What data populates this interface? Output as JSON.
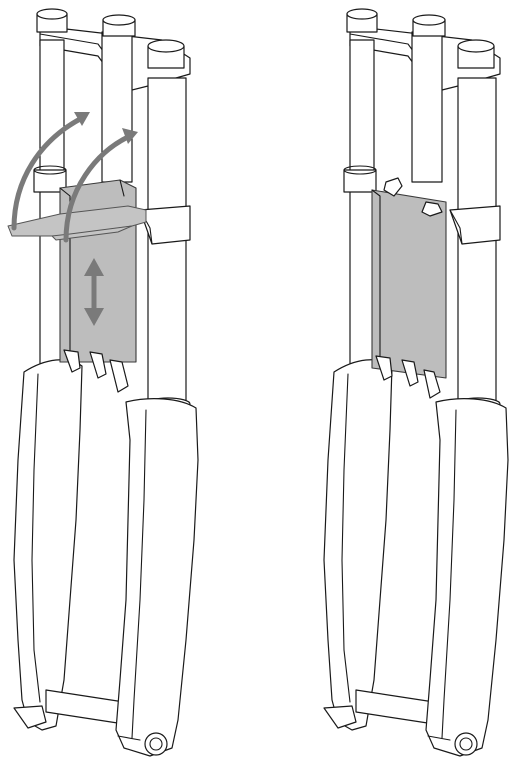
{
  "colors": {
    "line": "#1a1a1a",
    "fill": "#ffffff",
    "guard": "#bdbdbd",
    "tool": "#c4c4c4",
    "arrow": "#7a7a7a"
  },
  "panels": [
    {
      "id": "before",
      "elements": [
        "suspension-fork",
        "fork-guard",
        "removal-tool",
        "rotation-arrows",
        "vertical-adjust-arrow"
      ]
    },
    {
      "id": "after",
      "elements": [
        "suspension-fork",
        "fork-guard-installed"
      ]
    }
  ]
}
